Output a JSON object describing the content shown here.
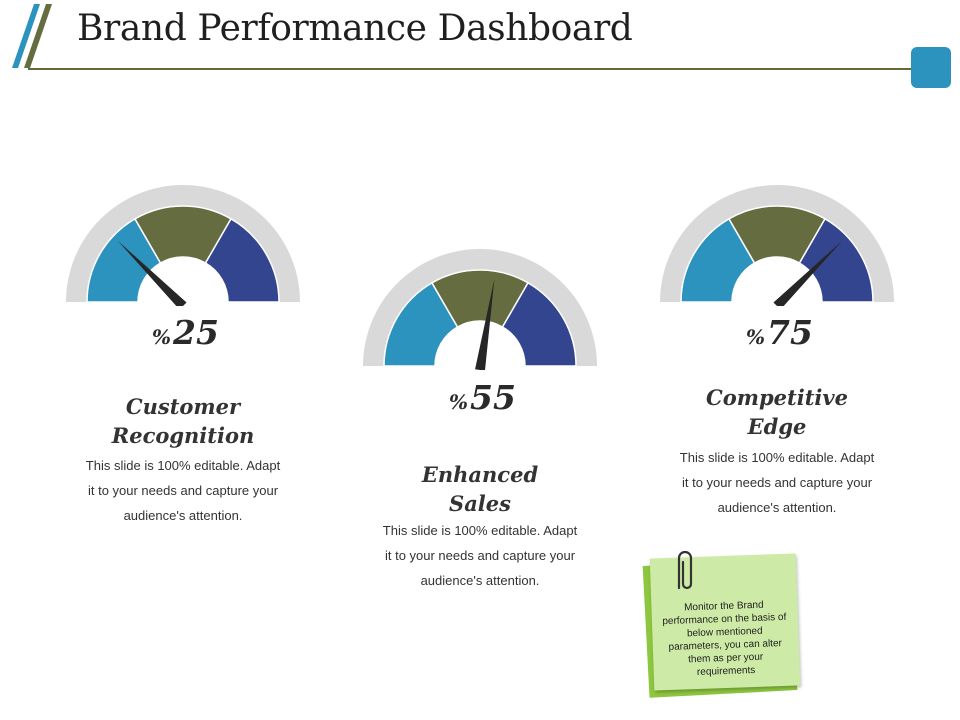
{
  "header": {
    "title": "Brand Performance Dashboard"
  },
  "colors": {
    "segment_blue": "#2b93bd",
    "segment_olive": "#656c3f",
    "segment_navy": "#33458f",
    "gauge_rim": "#d9d9d9",
    "needle": "#262626",
    "accent_square": "#2b93bd",
    "note_light": "#cdeaa6",
    "note_dark": "#8dc63f"
  },
  "gauges": [
    {
      "value": 25,
      "value_text": "25",
      "percent_symbol": "%",
      "label_line1": "Customer",
      "label_line2": "Recognition",
      "description_lines": [
        "This slide is 100% editable. Adapt",
        "it to your needs and capture your",
        "audience's attention."
      ]
    },
    {
      "value": 55,
      "value_text": "55",
      "percent_symbol": "%",
      "label_line1": "Enhanced",
      "label_line2": "Sales",
      "description_lines": [
        "This slide is 100% editable. Adapt",
        "it to your needs and capture your",
        "audience's attention."
      ]
    },
    {
      "value": 75,
      "value_text": "75",
      "percent_symbol": "%",
      "label_line1": "Competitive",
      "label_line2": "Edge",
      "description_lines": [
        "This slide is 100% editable. Adapt",
        "it to your needs and capture your",
        "audience's attention."
      ]
    }
  ],
  "note": {
    "text": "Monitor the Brand performance on the basis of below mentioned parameters, you can alter them as per your requirements"
  },
  "icons": {
    "decor": "double-slash-icon",
    "attachment": "paperclip-icon"
  }
}
